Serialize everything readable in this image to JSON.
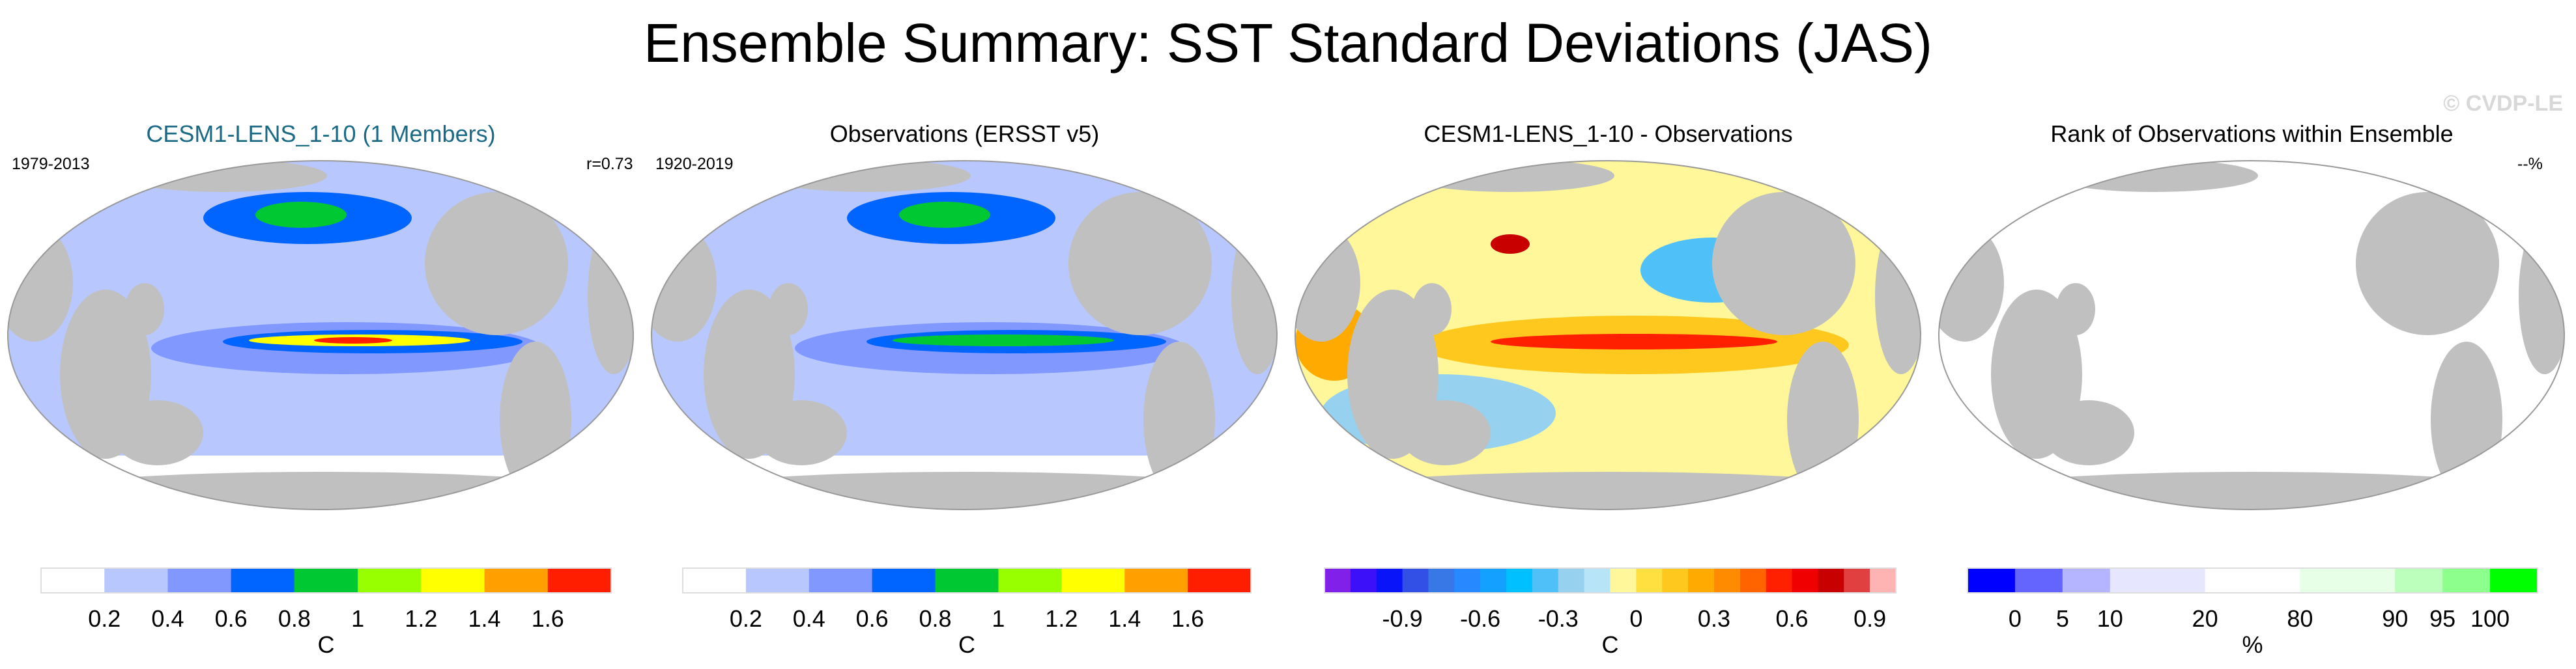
{
  "title": "Ensemble Summary: SST Standard Deviations (JAS)",
  "watermark": "© CVDP-LE",
  "panels": [
    {
      "title": "CESM1-LENS_1-10 (1 Members)",
      "title_color": "#1a6a85",
      "left_text": "1979-2013",
      "right_text": "r=0.73",
      "base": "#b8c8ff",
      "colorbar": 0
    },
    {
      "title": "Observations (ERSST v5)",
      "title_color": "#000000",
      "left_text": "1920-2019",
      "right_text": "",
      "base": "#b8c8ff",
      "colorbar": 1
    },
    {
      "title": "CESM1-LENS_1-10 - Observations",
      "title_color": "#000000",
      "left_text": "",
      "right_text": "",
      "base": "#fff799",
      "colorbar": 2
    },
    {
      "title": "Rank of Observations within Ensemble",
      "title_color": "#000000",
      "left_text": "",
      "right_text": "--%",
      "base": "#ffffff",
      "colorbar": 3
    }
  ],
  "land_color": "#c0c0c0",
  "chart_data": [
    {
      "type": "heatmap",
      "colorbar_labels": [
        "0.2",
        "0.4",
        "0.6",
        "0.8",
        "1",
        "1.2",
        "1.4",
        "1.6"
      ],
      "unit": "C",
      "colors": [
        "#ffffff",
        "#b8c8ff",
        "#8098ff",
        "#0064ff",
        "#00c832",
        "#98ff00",
        "#ffff00",
        "#ffa000",
        "#ff1e00"
      ]
    },
    {
      "type": "heatmap",
      "colorbar_labels": [
        "0.2",
        "0.4",
        "0.6",
        "0.8",
        "1",
        "1.2",
        "1.4",
        "1.6"
      ],
      "unit": "C",
      "colors": [
        "#ffffff",
        "#b8c8ff",
        "#8098ff",
        "#0064ff",
        "#00c832",
        "#98ff00",
        "#ffff00",
        "#ffa000",
        "#ff1e00"
      ]
    },
    {
      "type": "heatmap",
      "colorbar_labels": [
        "-0.9",
        "-0.6",
        "-0.3",
        "0",
        "0.3",
        "0.6",
        "0.9"
      ],
      "label_slots": [
        2,
        5,
        8,
        11,
        14,
        17,
        20
      ],
      "unit": "C",
      "colors": [
        "#8020e8",
        "#3c10f8",
        "#0a14f8",
        "#3250e6",
        "#3878e6",
        "#2888ff",
        "#14a0ff",
        "#00c0ff",
        "#50c0f8",
        "#96d2f0",
        "#b8e4f8",
        "#fff799",
        "#ffe040",
        "#ffc81e",
        "#ffaa00",
        "#ff8c00",
        "#ff6400",
        "#ff2000",
        "#f00000",
        "#c80000",
        "#e04040",
        "#ffb4b4"
      ]
    },
    {
      "type": "heatmap",
      "colorbar_labels": [
        "0",
        "5",
        "10",
        "20",
        "80",
        "90",
        "95",
        "100"
      ],
      "label_slots": [
        0,
        1,
        2,
        4,
        6,
        8,
        9,
        10
      ],
      "unit": "%",
      "colors": [
        "#0000ff",
        "#6464ff",
        "#b4b4ff",
        "#e6e6ff",
        "#e6e6ff",
        "#ffffff",
        "#ffffff",
        "#e6ffe6",
        "#e6ffe6",
        "#bcffbc",
        "#8cff8c",
        "#00ff00"
      ]
    }
  ]
}
